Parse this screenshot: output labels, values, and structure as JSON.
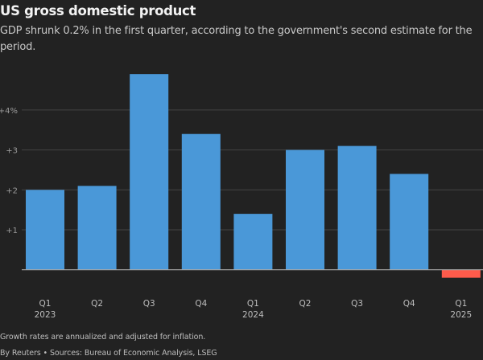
{
  "chart_data": {
    "type": "bar",
    "title": "US gross domestic product",
    "subtitle": "GDP shrunk 0.2% in the first quarter, according to the government's second estimate for the period.",
    "categories": [
      {
        "quarter": "Q1",
        "year": "2023"
      },
      {
        "quarter": "Q2",
        "year": ""
      },
      {
        "quarter": "Q3",
        "year": ""
      },
      {
        "quarter": "Q4",
        "year": ""
      },
      {
        "quarter": "Q1",
        "year": "2024"
      },
      {
        "quarter": "Q2",
        "year": ""
      },
      {
        "quarter": "Q3",
        "year": ""
      },
      {
        "quarter": "Q4",
        "year": ""
      },
      {
        "quarter": "Q1",
        "year": "2025"
      }
    ],
    "values": [
      2.0,
      2.1,
      4.9,
      3.4,
      1.4,
      3.0,
      3.1,
      2.4,
      -0.2
    ],
    "yticks": [
      {
        "value": 1,
        "label": "+1"
      },
      {
        "value": 2,
        "label": "+2"
      },
      {
        "value": 3,
        "label": "+3"
      },
      {
        "value": 4,
        "label": "+4%"
      }
    ],
    "ylim": [
      -0.2,
      5.0
    ],
    "grid": true,
    "colors": {
      "positive": "#4a98d8",
      "negative": "#ff5b4b",
      "background": "#222222"
    }
  },
  "footer": {
    "note": "Growth rates are annualized and adjusted for inflation.",
    "source": "By Reuters • Sources: Bureau of Economic Analysis, LSEG"
  }
}
